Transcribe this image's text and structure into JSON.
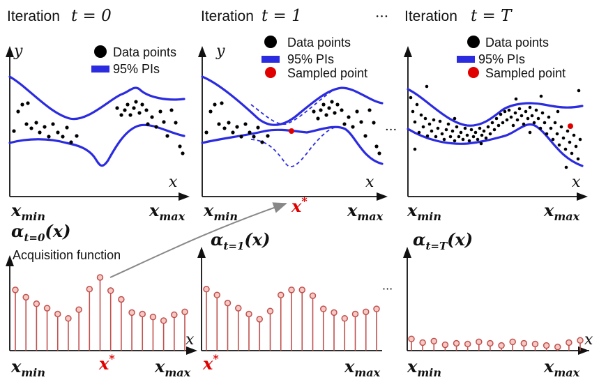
{
  "panels": [
    {
      "title_prefix": "Iteration",
      "title_math": "t = 0",
      "y_label": "y",
      "x_label": "x",
      "x_min": "min",
      "x_max": "max",
      "legend": [
        "Data points",
        "95% PIs"
      ],
      "acq_label": "(x)",
      "acq_sub": "t=0",
      "acq_note": "Acquisition function",
      "acq_x_star": "*",
      "acq_values": [
        0.83,
        0.73,
        0.64,
        0.58,
        0.5,
        0.44,
        0.56,
        0.84,
        1.0,
        0.82,
        0.7,
        0.52,
        0.5,
        0.46,
        0.41,
        0.49,
        0.53
      ]
    },
    {
      "title_prefix": "Iteration",
      "title_math": "t = 1",
      "y_label": "y",
      "x_label": "x",
      "x_min": "min",
      "x_max": "max",
      "legend": [
        "Data points",
        "95% PIs",
        "Sampled point"
      ],
      "x_star": "*",
      "acq_label": "(x)",
      "acq_sub": "t=1",
      "acq_x_star": "*",
      "acq_values": [
        0.84,
        0.76,
        0.65,
        0.58,
        0.5,
        0.43,
        0.54,
        0.76,
        0.83,
        0.83,
        0.75,
        0.57,
        0.52,
        0.44,
        0.5,
        0.53,
        0.57
      ]
    },
    {
      "title_prefix": "Iteration",
      "title_math": "t = T",
      "y_label": "y",
      "x_label": "x",
      "x_min": "min",
      "x_max": "max",
      "legend": [
        "Data points",
        "95% PIs",
        "Sampled point"
      ],
      "acq_label": "(x)",
      "acq_sub": "t=T",
      "acq_values": [
        0.16,
        0.11,
        0.13,
        0.08,
        0.1,
        0.09,
        0.12,
        0.1,
        0.07,
        0.12,
        0.1,
        0.09,
        0.07,
        0.05,
        0.11,
        0.14
      ]
    }
  ],
  "ellipsis": "···",
  "colors": {
    "pi_line": "#2b2be0",
    "sampled": "#e00000",
    "stem": "#c0504d",
    "stem_head": "#f5c9c4"
  }
}
